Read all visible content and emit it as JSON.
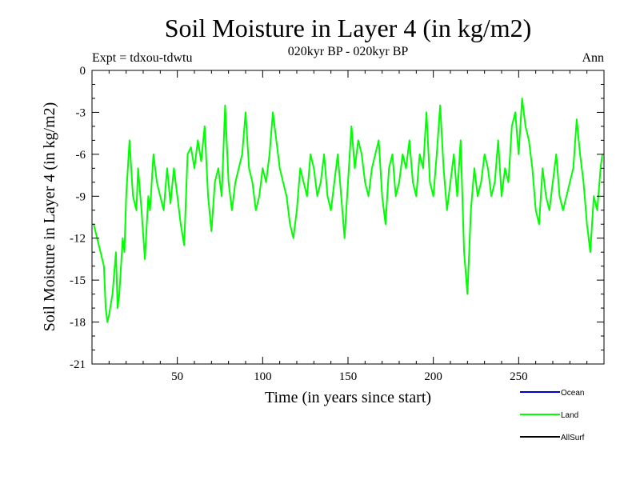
{
  "header": {
    "title": "Soil Moisture in Layer 4 (in kg/m2)",
    "subtitle": "020kyr BP - 020kyr BP",
    "expt": "Expt = tdxou-tdwtu",
    "period": "Ann"
  },
  "legend": {
    "items": [
      {
        "label": "Ocean",
        "color": "#0000cc"
      },
      {
        "label": "Land",
        "color": "#00ff00"
      },
      {
        "label": "AllSurf",
        "color": "#000000"
      }
    ]
  },
  "chart_data": {
    "type": "line",
    "title": "Soil Moisture in Layer 4 (in kg/m2)",
    "subtitle": "020kyr BP - 020kyr BP",
    "xlabel": "Time (in years since start)",
    "ylabel": "Soil Moisture in Layer 4 (in kg/m2)",
    "xlim": [
      0,
      300
    ],
    "ylim": [
      -21,
      0
    ],
    "xticks": [
      50,
      100,
      150,
      200,
      250
    ],
    "yticks": [
      0,
      -3,
      -6,
      -9,
      -12,
      -15,
      -18,
      -21
    ],
    "legend_position": "bottom-right",
    "grid": false,
    "series": [
      {
        "name": "Ocean",
        "color": "#0000cc",
        "x": [],
        "values": []
      },
      {
        "name": "Land",
        "color": "#00ff00",
        "x": [
          1,
          5,
          7,
          8,
          9,
          10,
          12,
          14,
          15,
          16,
          18,
          19,
          20,
          22,
          24,
          26,
          27,
          29,
          31,
          33,
          34,
          36,
          38,
          40,
          42,
          44,
          46,
          48,
          50,
          52,
          54,
          56,
          58,
          60,
          62,
          64,
          66,
          68,
          70,
          72,
          74,
          76,
          78,
          80,
          82,
          84,
          86,
          88,
          90,
          92,
          94,
          96,
          98,
          100,
          102,
          104,
          106,
          108,
          110,
          112,
          114,
          116,
          118,
          120,
          122,
          124,
          126,
          128,
          130,
          132,
          134,
          136,
          138,
          140,
          142,
          144,
          146,
          148,
          150,
          152,
          154,
          156,
          158,
          160,
          162,
          164,
          166,
          168,
          170,
          172,
          174,
          176,
          178,
          180,
          182,
          184,
          186,
          188,
          190,
          192,
          194,
          196,
          198,
          200,
          202,
          204,
          206,
          208,
          210,
          212,
          214,
          216,
          218,
          220,
          222,
          224,
          226,
          228,
          230,
          232,
          234,
          236,
          238,
          240,
          242,
          244,
          246,
          248,
          250,
          252,
          254,
          256,
          258,
          260,
          262,
          264,
          266,
          268,
          270,
          272,
          274,
          276,
          278,
          280,
          282,
          284,
          286,
          288,
          290,
          292,
          294,
          296,
          298,
          299
        ],
        "values": [
          -11,
          -13,
          -14,
          -17,
          -18,
          -17.5,
          -16,
          -13,
          -17,
          -16,
          -12,
          -13,
          -9,
          -5,
          -9,
          -10,
          -7,
          -10,
          -13.5,
          -9,
          -10,
          -6,
          -8,
          -9,
          -10,
          -7,
          -9.5,
          -7,
          -9,
          -11,
          -12.5,
          -6,
          -5.5,
          -7,
          -5,
          -6.5,
          -4,
          -9,
          -11.5,
          -8,
          -7,
          -9,
          -2.5,
          -8,
          -10,
          -8,
          -7,
          -6,
          -3,
          -7,
          -8,
          -10,
          -9,
          -7,
          -8,
          -6,
          -3,
          -5,
          -7,
          -8,
          -9,
          -11,
          -12,
          -10,
          -7,
          -8,
          -9,
          -6,
          -7,
          -9,
          -8,
          -6,
          -9,
          -10,
          -8,
          -6,
          -9,
          -12,
          -8,
          -4,
          -7,
          -5,
          -6,
          -8,
          -9,
          -7,
          -6,
          -5,
          -9,
          -11,
          -7,
          -6,
          -9,
          -8,
          -6,
          -7,
          -5,
          -8,
          -9,
          -6,
          -7,
          -3,
          -8,
          -9,
          -6,
          -2.5,
          -7,
          -10,
          -8,
          -6,
          -9,
          -5,
          -13,
          -16,
          -10,
          -7,
          -9,
          -8,
          -6,
          -7,
          -9,
          -8,
          -5,
          -9,
          -7,
          -8,
          -4,
          -3,
          -6,
          -2,
          -4,
          -5,
          -7,
          -10,
          -11,
          -7,
          -9,
          -10,
          -8,
          -6,
          -9,
          -10,
          -9,
          -8,
          -7,
          -3.5,
          -6,
          -8,
          -11,
          -13,
          -9,
          -10,
          -7,
          -6
        ]
      },
      {
        "name": "AllSurf",
        "color": "#000000",
        "x": [],
        "values": []
      }
    ]
  }
}
